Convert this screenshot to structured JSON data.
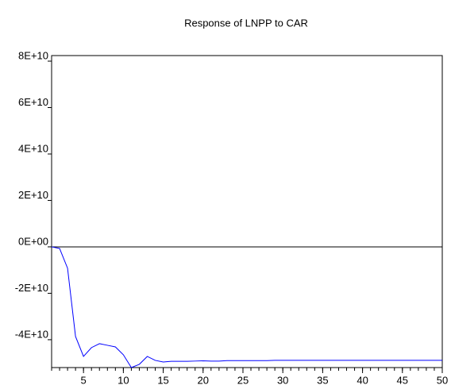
{
  "chart_data": {
    "type": "line",
    "title": "Response of LNPP to CAR",
    "x": [
      1,
      2,
      3,
      4,
      5,
      6,
      7,
      8,
      9,
      10,
      11,
      12,
      13,
      14,
      15,
      16,
      17,
      18,
      19,
      20,
      21,
      22,
      23,
      24,
      25,
      26,
      27,
      28,
      29,
      30,
      31,
      32,
      33,
      34,
      35,
      36,
      37,
      38,
      39,
      40,
      41,
      42,
      43,
      44,
      45,
      46,
      47,
      48,
      49,
      50
    ],
    "series": [
      {
        "name": "LNPP",
        "color": "#0000ff",
        "values": [
          0,
          -700000000,
          -9200000000,
          -38600000000,
          -47200000000,
          -43400000000,
          -41700000000,
          -42400000000,
          -43100000000,
          -46500000000,
          -52000000000,
          -50600000000,
          -47200000000,
          -48900000000,
          -49600000000,
          -49300000000,
          -49300000000,
          -49300000000,
          -49200000000,
          -49100000000,
          -49200000000,
          -49200000000,
          -49000000000,
          -49000000000,
          -49000000000,
          -49000000000,
          -49000000000,
          -49000000000,
          -48900000000,
          -48900000000,
          -48900000000,
          -48900000000,
          -48900000000,
          -48900000000,
          -48900000000,
          -48900000000,
          -48900000000,
          -48900000000,
          -48900000000,
          -48900000000,
          -48900000000,
          -48900000000,
          -48900000000,
          -48900000000,
          -48900000000,
          -48900000000,
          -48900000000,
          -48900000000,
          -48900000000,
          -48900000000
        ]
      }
    ],
    "xlim": [
      1,
      50
    ],
    "xticks": [
      5,
      10,
      15,
      20,
      25,
      30,
      35,
      40,
      45,
      50
    ],
    "ylim": [
      -52000000000,
      82400000000
    ],
    "yticks": [
      {
        "value": -40000000000,
        "label": "-4E+10"
      },
      {
        "value": -20000000000,
        "label": "-2E+10"
      },
      {
        "value": 0,
        "label": "0E+00"
      },
      {
        "value": 20000000000,
        "label": "2E+10"
      },
      {
        "value": 40000000000,
        "label": "4E+10"
      },
      {
        "value": 60000000000,
        "label": "6E+10"
      },
      {
        "value": 80000000000,
        "label": "8E+10"
      }
    ],
    "zero_line": true
  }
}
